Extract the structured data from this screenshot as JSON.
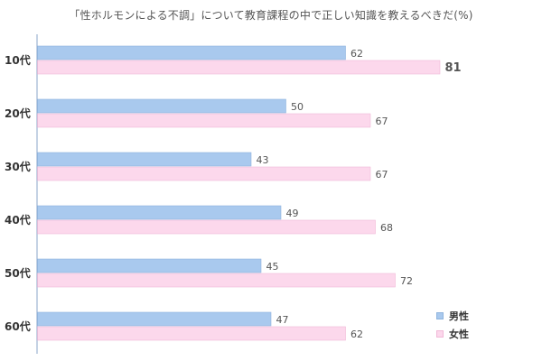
{
  "title": "「性ホルモンによる不調」について教育課程の中で正しい知識を教えるべきだ(%)",
  "colors": {
    "male": "#a9c9ee",
    "female": "#fcd8ec",
    "male_border": "#8fb4de",
    "female_border": "#f1b9d7",
    "axis": "#8aa6c9",
    "highlight": "#9b1c1c"
  },
  "chart_data": {
    "type": "bar",
    "orientation": "horizontal",
    "title": "「性ホルモンによる不調」について教育課程の中で正しい知識を教えるべきだ(%)",
    "categories": [
      "10代",
      "20代",
      "30代",
      "40代",
      "50代",
      "60代"
    ],
    "series": [
      {
        "name": "男性",
        "values": [
          62,
          50,
          43,
          49,
          45,
          47
        ]
      },
      {
        "name": "女性",
        "values": [
          81,
          67,
          67,
          68,
          72,
          62
        ]
      }
    ],
    "xlim": [
      0,
      100
    ],
    "grid": false,
    "legend_position": "bottom-right",
    "highlight": {
      "category": "10代",
      "series": "女性",
      "value": 81
    }
  }
}
